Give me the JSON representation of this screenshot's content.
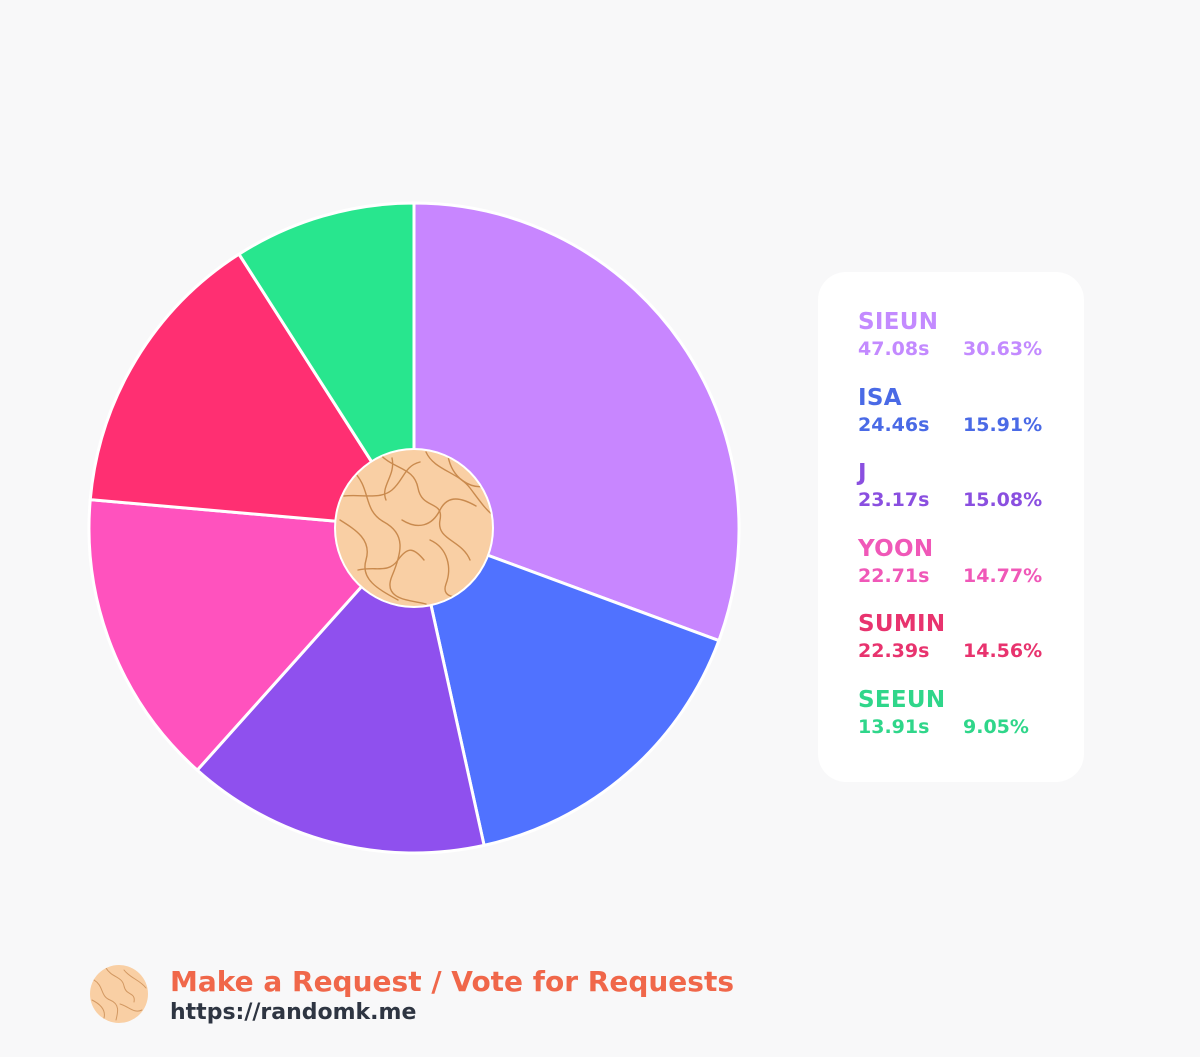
{
  "chart_data": {
    "type": "pie",
    "series": [
      {
        "name": "SIEUN",
        "seconds": "47.08s",
        "percent": "30.63%",
        "value": 30.63,
        "color": "#c886ff"
      },
      {
        "name": "ISA",
        "seconds": "24.46s",
        "percent": "15.91%",
        "value": 15.91,
        "color": "#5072ff"
      },
      {
        "name": "J",
        "seconds": "23.17s",
        "percent": "15.08%",
        "value": 15.08,
        "color": "#8f50ee"
      },
      {
        "name": "YOON",
        "seconds": "22.71s",
        "percent": "14.77%",
        "value": 14.77,
        "color": "#ff52be"
      },
      {
        "name": "SUMIN",
        "seconds": "22.39s",
        "percent": "14.56%",
        "value": 14.56,
        "color": "#ff2f72"
      },
      {
        "name": "SEEUN",
        "seconds": "13.91s",
        "percent": "9.05%",
        "value": 9.05,
        "color": "#28e68e"
      }
    ],
    "start_angle_deg": 0,
    "direction": "clockwise",
    "legend_position": "right"
  },
  "legend_text_colors": {
    "SIEUN": "#c38aff",
    "ISA": "#4a6ae6",
    "J": "#8a4fe0",
    "YOON": "#f058b8",
    "SUMIN": "#e8336e",
    "SEEUN": "#2fd68a"
  },
  "center_logo_icon": "randomk-map-badge-icon",
  "footer": {
    "logo_icon": "randomk-map-badge-icon",
    "cta": "Make a Request / Vote for Requests",
    "url": "https://randomk.me",
    "cta_color": "#f0674a"
  }
}
